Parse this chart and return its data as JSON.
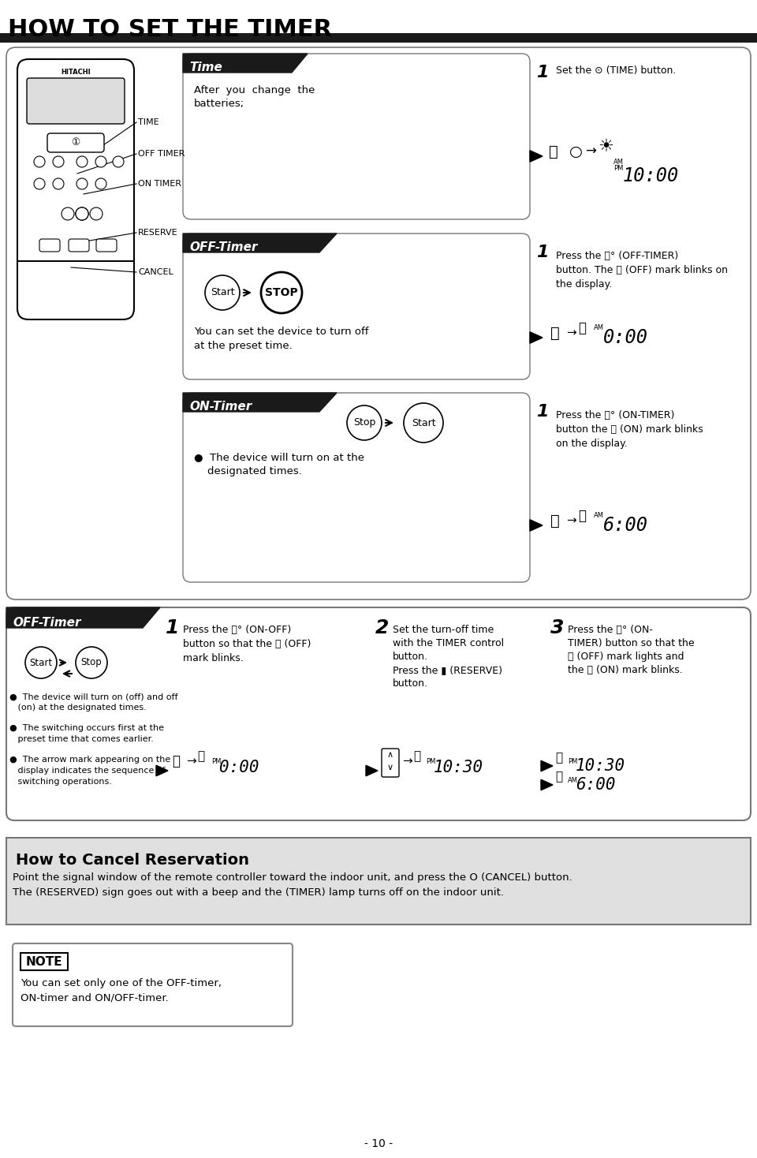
{
  "title": "HOW TO SET THE TIMER",
  "page_number": "- 10 -",
  "bg_color": "#ffffff",
  "sections": {
    "time": {
      "header": "Time",
      "body": "After  you  change  the\nbatteries;",
      "step": "1  Set the (TIME) button."
    },
    "off_timer": {
      "header": "OFF-Timer",
      "body": "You can set the device to turn off\nat the preset time.",
      "step": "1  Press the (OFF-TIMER)\nbutton. The (OFF) mark blinks on\nthe display."
    },
    "on_timer": {
      "header": "ON-Timer",
      "bullet": "The device will turn on at the\ndesignated times.",
      "step": "1  Press the (ON-TIMER)\nbutton the (ON) mark blinks\non the display."
    },
    "off_timer2": {
      "header": "OFF-Timer",
      "step1": "1  Press the (ON-OFF)\nbutton so that the (OFF)\nmark blinks.",
      "step2": "2  Set the turn-off time\nwith the TIMER control\nbutton.\nPress the  (RESERVE)\nbutton.",
      "step3": "3  Press the (ON-\nTIMER) button so that the\n(OFF) mark lights and\nthe (ON) mark blinks.",
      "bullets": [
        "The device will turn on (off) and off\n(on) at the designated times.",
        "The switching occurs first at the\npreset time that comes earlier.",
        "The arrow mark appearing on the\ndisplay indicates the sequence of\nswitching operations."
      ]
    }
  },
  "cancel": {
    "header": "How to Cancel Reservation",
    "body": "Point the signal window of the remote controller toward the indoor unit, and press the O (CANCEL) button.\nThe (RESERVED) sign goes out with a beep and the (TIMER) lamp turns off on the indoor unit."
  },
  "note": {
    "body": "You can set only one of the OFF-timer,\nON-timer and ON/OFF-timer."
  }
}
